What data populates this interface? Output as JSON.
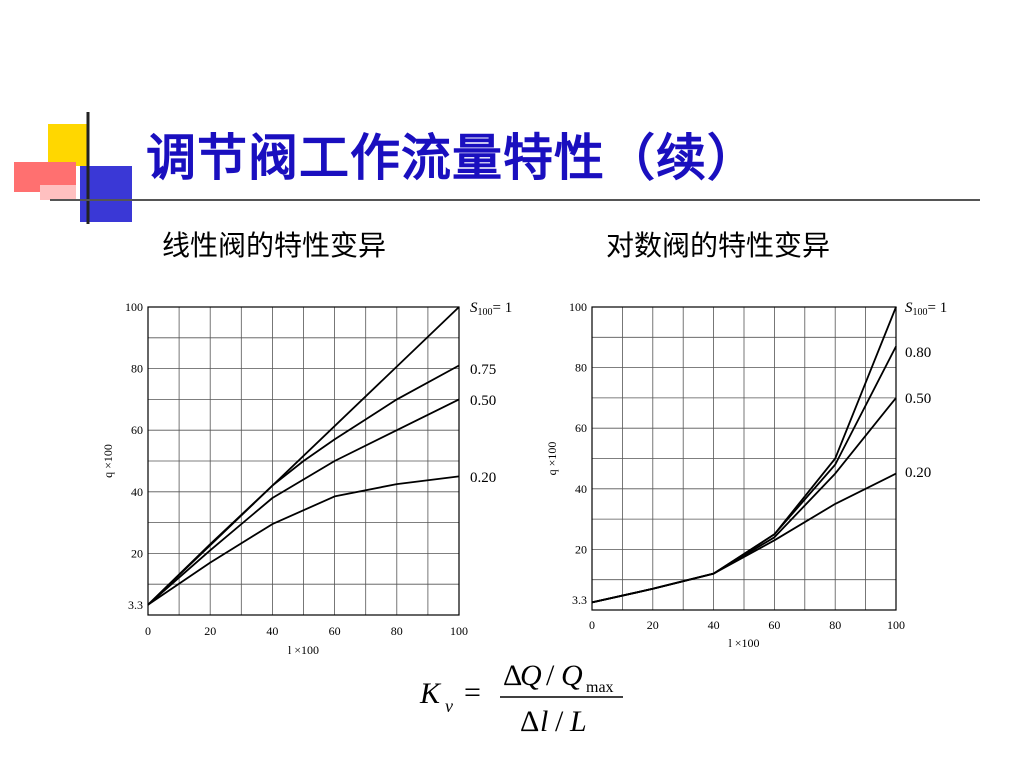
{
  "slide": {
    "title": "调节阀工作流量特性（续）",
    "subtitle_left": "线性阀的特性变异",
    "subtitle_right": "对数阀的特性变异"
  },
  "colors": {
    "title": "#1a0fbf",
    "deco_yellow": "#ffd700",
    "deco_blue": "#3a38d6",
    "deco_red": "#ff6a6a",
    "rule": "#444444"
  },
  "formula": {
    "lhs_symbol": "K",
    "lhs_subscript": "v",
    "equals": "=",
    "num_delta": "Δ",
    "num_q": "Q",
    "num_slash": "/",
    "num_q2": "Q",
    "num_sub": "max",
    "den_delta": "Δ",
    "den_l": "l",
    "den_slash": "/",
    "den_L": "L"
  },
  "chart_data": [
    {
      "type": "line",
      "xlabel": "l ×100",
      "ylabel": "q ×100",
      "xlim": [
        0,
        100
      ],
      "ylim": [
        0,
        100
      ],
      "xticks": [
        0,
        20,
        40,
        60,
        80,
        100
      ],
      "xtick_labels": [
        "0",
        "20",
        "40",
        "60",
        "80",
        "100"
      ],
      "yticks": [
        3.3,
        20,
        40,
        60,
        80,
        100
      ],
      "ytick_labels": [
        "3.3",
        "20",
        "40",
        "60",
        "80",
        "100"
      ],
      "grid": true,
      "grid_step": 10,
      "series": [
        {
          "name": "S100= 1",
          "label_main": "S",
          "label_sub": "100",
          "label_tail": "= 1",
          "x": [
            0,
            100
          ],
          "y": [
            3.3,
            100
          ]
        },
        {
          "name": "0.75",
          "x": [
            0,
            20,
            40,
            50,
            60,
            80,
            100
          ],
          "y": [
            3.3,
            23,
            42,
            50,
            57,
            70,
            81
          ]
        },
        {
          "name": "0.50",
          "x": [
            0,
            20,
            40,
            60,
            80,
            100
          ],
          "y": [
            3.3,
            21,
            38,
            50,
            60,
            70
          ]
        },
        {
          "name": "0.20",
          "x": [
            0,
            20,
            40,
            60,
            80,
            100
          ],
          "y": [
            3.3,
            17,
            29.5,
            38.5,
            42.5,
            45
          ]
        }
      ]
    },
    {
      "type": "line",
      "xlabel": "l ×100",
      "ylabel": "q ×100",
      "xlim": [
        0,
        100
      ],
      "ylim": [
        0,
        100
      ],
      "xticks": [
        0,
        20,
        40,
        60,
        80,
        100
      ],
      "xtick_labels": [
        "0",
        "20",
        "40",
        "60",
        "80",
        "100"
      ],
      "yticks": [
        3.3,
        20,
        40,
        60,
        80,
        100
      ],
      "ytick_labels": [
        "3.3",
        "20",
        "40",
        "60",
        "80",
        "100"
      ],
      "grid": true,
      "grid_step": 10,
      "series": [
        {
          "name": "S100= 1",
          "label_main": "S",
          "label_sub": "100",
          "label_tail": "= 1",
          "x": [
            0,
            20,
            40,
            60,
            80,
            100
          ],
          "y": [
            2.5,
            7,
            12,
            25,
            50,
            100
          ]
        },
        {
          "name": "0.80",
          "x": [
            0,
            20,
            40,
            60,
            80,
            100
          ],
          "y": [
            2.5,
            7,
            12,
            25,
            48,
            87
          ]
        },
        {
          "name": "0.50",
          "x": [
            0,
            20,
            40,
            60,
            80,
            100
          ],
          "y": [
            2.5,
            7,
            12,
            24,
            45,
            70
          ]
        },
        {
          "name": "0.20",
          "x": [
            0,
            20,
            40,
            60,
            80,
            100
          ],
          "y": [
            2.5,
            7,
            12,
            23,
            35,
            45
          ]
        }
      ]
    }
  ]
}
